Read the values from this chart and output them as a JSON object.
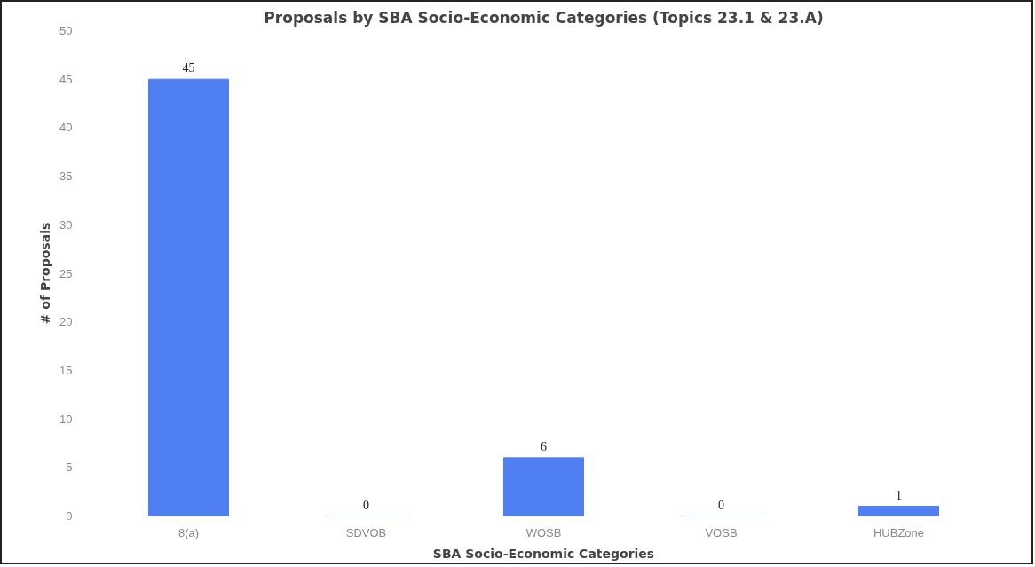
{
  "chart_data": {
    "type": "bar",
    "title": "Proposals by SBA Socio-Economic Categories (Topics 23.1 & 23.A)",
    "xlabel": "SBA Socio-Economic Categories",
    "ylabel": "# of Proposals",
    "categories": [
      "8(a)",
      "SDVOB",
      "WOSB",
      "VOSB",
      "HUBZone"
    ],
    "values": [
      45,
      0,
      6,
      0,
      1
    ],
    "color": "#4f7ff0",
    "ylim": [
      0,
      50
    ],
    "yticks": [
      0,
      5,
      10,
      15,
      20,
      25,
      30,
      35,
      40,
      45,
      50
    ],
    "grid": false,
    "data_labels": true
  }
}
